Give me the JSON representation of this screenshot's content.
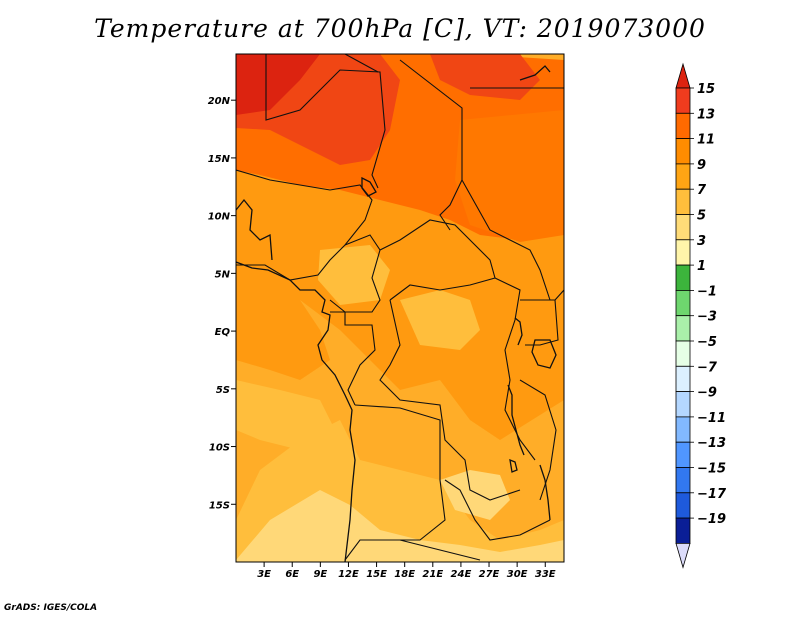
{
  "title": "Temperature at 700hPa [C], VT: 2019073000",
  "footer": "GrADS: IGES/COLA",
  "map": {
    "lon_range": [
      0,
      35
    ],
    "lat_range": [
      -20,
      24
    ],
    "lat_ticks": [
      {
        "value": 20,
        "label": "20N"
      },
      {
        "value": 15,
        "label": "15N"
      },
      {
        "value": 10,
        "label": "10N"
      },
      {
        "value": 5,
        "label": "5N"
      },
      {
        "value": 0,
        "label": "EQ"
      },
      {
        "value": -5,
        "label": "5S"
      },
      {
        "value": -10,
        "label": "10S"
      },
      {
        "value": -15,
        "label": "15S"
      }
    ],
    "lon_ticks": [
      {
        "value": 3,
        "label": "3E"
      },
      {
        "value": 6,
        "label": "6E"
      },
      {
        "value": 9,
        "label": "9E"
      },
      {
        "value": 12,
        "label": "12E"
      },
      {
        "value": 15,
        "label": "15E"
      },
      {
        "value": 18,
        "label": "18E"
      },
      {
        "value": 21,
        "label": "21E"
      },
      {
        "value": 24,
        "label": "24E"
      },
      {
        "value": 27,
        "label": "27E"
      },
      {
        "value": 30,
        "label": "30E"
      },
      {
        "value": 33,
        "label": "33E"
      }
    ]
  },
  "colorbar": {
    "labels": [
      "15",
      "13",
      "11",
      "9",
      "7",
      "5",
      "3",
      "1",
      "−1",
      "−3",
      "−5",
      "−7",
      "−9",
      "−11",
      "−13",
      "−15",
      "−17",
      "−19"
    ],
    "top_arrow_color": "#dc2310",
    "bottom_arrow_color": "#dcdcfa",
    "colors": [
      "#f03c1e",
      "#ff6000",
      "#ff9000",
      "#ffad28",
      "#ffc850",
      "#ffe58f",
      "#fffab4",
      "#3cb43c",
      "#78dc78",
      "#b4f0b4",
      "#ebffeb",
      "#e1f5ff",
      "#b4dcff",
      "#78b9ff",
      "#4691ff",
      "#2870ff",
      "#1450e8",
      "#0a28b4",
      "#000064"
    ]
  }
}
